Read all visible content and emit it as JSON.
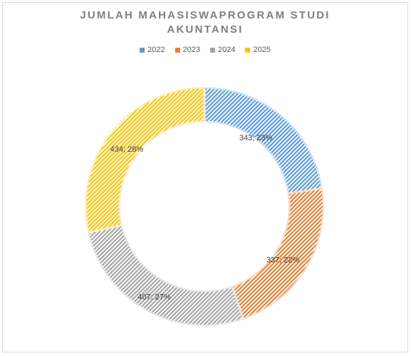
{
  "chart_data": {
    "type": "pie",
    "style": "doughnut",
    "title_lines": [
      "JUMLAH MAHASISWAPROGRAM STUDI",
      "AKUNTANSI"
    ],
    "legend_position": "top",
    "categories": [
      "2022",
      "2023",
      "2024",
      "2025"
    ],
    "values": [
      343,
      337,
      407,
      434
    ],
    "percent_labels": [
      "23%",
      "22%",
      "27%",
      "28%"
    ],
    "data_labels": [
      "343; 23%",
      "337; 22%",
      "407; 27%",
      "434; 28%"
    ],
    "colors": [
      "#5b9bd5",
      "#ed7d31",
      "#a5a5a5",
      "#ffc000"
    ],
    "fill_pattern": "diagonal-hatch"
  }
}
